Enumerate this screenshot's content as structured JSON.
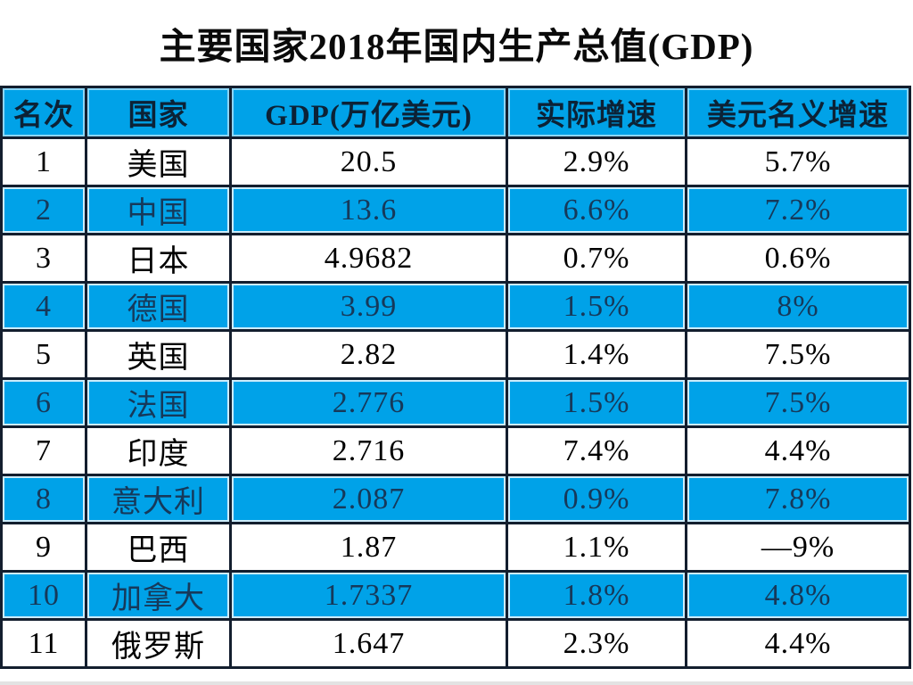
{
  "page_title": "主要国家2018年国内生产总值(GDP)",
  "chart_data": {
    "type": "table",
    "title": "主要国家2018年国内生产总值(GDP)",
    "columns": [
      "名次",
      "国家",
      "GDP(万亿美元)",
      "实际增速",
      "美元名义增速"
    ],
    "rows": [
      [
        "1",
        "美国",
        "20.5",
        "2.9%",
        "5.7%"
      ],
      [
        "2",
        "中国",
        "13.6",
        "6.6%",
        "7.2%"
      ],
      [
        "3",
        "日本",
        "4.9682",
        "0.7%",
        "0.6%"
      ],
      [
        "4",
        "德国",
        "3.99",
        "1.5%",
        "8%"
      ],
      [
        "5",
        "英国",
        "2.82",
        "1.4%",
        "7.5%"
      ],
      [
        "6",
        "法国",
        "2.776",
        "1.5%",
        "7.5%"
      ],
      [
        "7",
        "印度",
        "2.716",
        "7.4%",
        "4.4%"
      ],
      [
        "8",
        "意大利",
        "2.087",
        "0.9%",
        "7.8%"
      ],
      [
        "9",
        "巴西",
        "1.87",
        "1.1%",
        "—9%"
      ],
      [
        "10",
        "加拿大",
        "1.7337",
        "1.8%",
        "4.8%"
      ],
      [
        "11",
        "俄罗斯",
        "1.647",
        "2.3%",
        "4.4%"
      ]
    ],
    "layout": {
      "alternating_highlight_rows": "even ranks (2,4,6,8,10) and header are blue",
      "grid": "on"
    }
  },
  "colors": {
    "highlight_blue": "#00a2e8",
    "border_dark": "#131e2e",
    "header_text": "#0c2236",
    "alt_row_text": "#16395a",
    "body_text": "#000000"
  }
}
